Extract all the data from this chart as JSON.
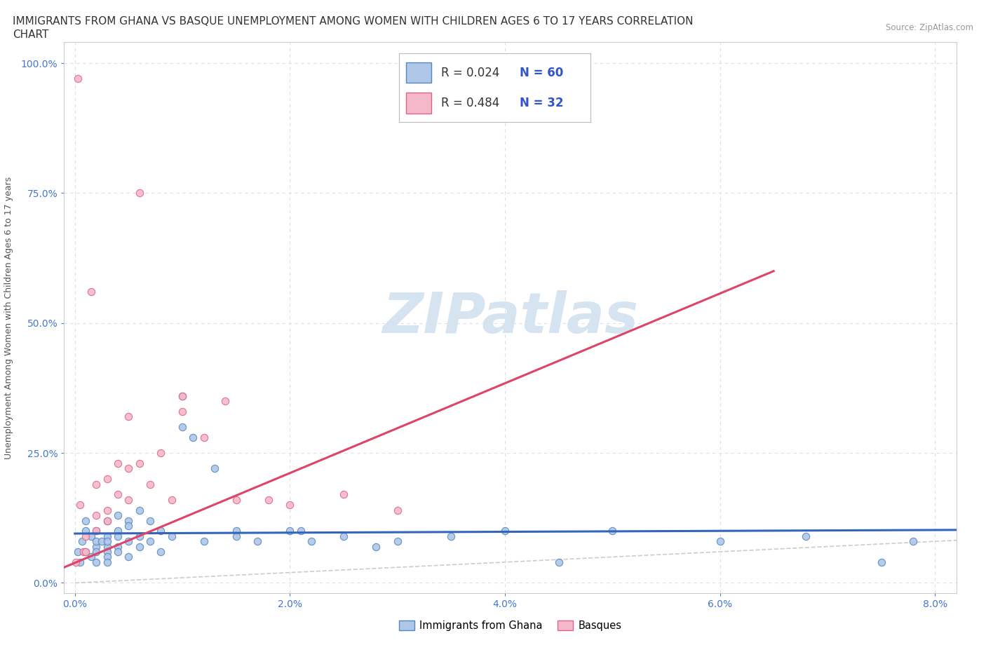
{
  "title_line1": "IMMIGRANTS FROM GHANA VS BASQUE UNEMPLOYMENT AMONG WOMEN WITH CHILDREN AGES 6 TO 17 YEARS CORRELATION",
  "title_line2": "CHART",
  "source_text": "Source: ZipAtlas.com",
  "ylabel": "Unemployment Among Women with Children Ages 6 to 17 years",
  "xlim": [
    -0.001,
    0.082
  ],
  "ylim": [
    -0.02,
    1.04
  ],
  "xticks": [
    0.0,
    0.02,
    0.04,
    0.06,
    0.08
  ],
  "xtick_labels": [
    "0.0%",
    "2.0%",
    "4.0%",
    "6.0%",
    "8.0%"
  ],
  "yticks": [
    0.0,
    0.25,
    0.5,
    0.75,
    1.0
  ],
  "ytick_labels": [
    "0.0%",
    "25.0%",
    "50.0%",
    "75.0%",
    "100.0%"
  ],
  "ghana_color": "#aec6e8",
  "basque_color": "#f5b8c8",
  "ghana_edge_color": "#5588bb",
  "basque_edge_color": "#dd6688",
  "ghana_line_color": "#3366bb",
  "basque_line_color": "#dd4466",
  "ref_line_color": "#cccccc",
  "watermark_color": "#d5e4f0",
  "legend_r_color": "#333333",
  "legend_n_color": "#3355cc",
  "grid_color": "#ddddee",
  "title_fontsize": 11,
  "axis_label_fontsize": 9,
  "tick_fontsize": 10,
  "legend_fontsize": 12,
  "marker_size": 55,
  "ghana_x": [
    0.0003,
    0.0005,
    0.0007,
    0.001,
    0.001,
    0.001,
    0.0015,
    0.0015,
    0.002,
    0.002,
    0.002,
    0.002,
    0.002,
    0.0025,
    0.003,
    0.003,
    0.003,
    0.003,
    0.003,
    0.003,
    0.003,
    0.004,
    0.004,
    0.004,
    0.004,
    0.004,
    0.005,
    0.005,
    0.005,
    0.005,
    0.006,
    0.006,
    0.006,
    0.007,
    0.007,
    0.008,
    0.008,
    0.009,
    0.01,
    0.01,
    0.011,
    0.012,
    0.013,
    0.015,
    0.015,
    0.017,
    0.02,
    0.021,
    0.022,
    0.025,
    0.028,
    0.03,
    0.035,
    0.04,
    0.045,
    0.05,
    0.06,
    0.068,
    0.075,
    0.078
  ],
  "ghana_y": [
    0.06,
    0.04,
    0.08,
    0.06,
    0.1,
    0.12,
    0.05,
    0.09,
    0.07,
    0.06,
    0.08,
    0.1,
    0.04,
    0.08,
    0.07,
    0.06,
    0.09,
    0.12,
    0.05,
    0.08,
    0.04,
    0.1,
    0.07,
    0.09,
    0.13,
    0.06,
    0.12,
    0.08,
    0.11,
    0.05,
    0.09,
    0.07,
    0.14,
    0.12,
    0.08,
    0.1,
    0.06,
    0.09,
    0.3,
    0.36,
    0.28,
    0.08,
    0.22,
    0.1,
    0.09,
    0.08,
    0.1,
    0.1,
    0.08,
    0.09,
    0.07,
    0.08,
    0.09,
    0.1,
    0.04,
    0.1,
    0.08,
    0.09,
    0.04,
    0.08
  ],
  "basque_x": [
    0.0001,
    0.0003,
    0.0005,
    0.0008,
    0.001,
    0.001,
    0.0015,
    0.002,
    0.002,
    0.002,
    0.003,
    0.003,
    0.003,
    0.004,
    0.004,
    0.005,
    0.005,
    0.005,
    0.006,
    0.006,
    0.007,
    0.008,
    0.009,
    0.01,
    0.01,
    0.012,
    0.014,
    0.015,
    0.018,
    0.02,
    0.025,
    0.03
  ],
  "basque_y": [
    0.04,
    0.97,
    0.15,
    0.06,
    0.06,
    0.09,
    0.56,
    0.13,
    0.1,
    0.19,
    0.12,
    0.2,
    0.14,
    0.23,
    0.17,
    0.22,
    0.16,
    0.32,
    0.23,
    0.75,
    0.19,
    0.25,
    0.16,
    0.36,
    0.33,
    0.28,
    0.35,
    0.16,
    0.16,
    0.15,
    0.17,
    0.14
  ],
  "ghana_trend_x": [
    0.0,
    0.082
  ],
  "ghana_trend_y": [
    0.095,
    0.102
  ],
  "basque_trend_x": [
    -0.001,
    0.065
  ],
  "basque_trend_y": [
    0.03,
    0.6
  ],
  "ref_line_x": [
    0.0,
    0.082
  ],
  "ref_line_y": [
    0.0,
    0.082
  ]
}
